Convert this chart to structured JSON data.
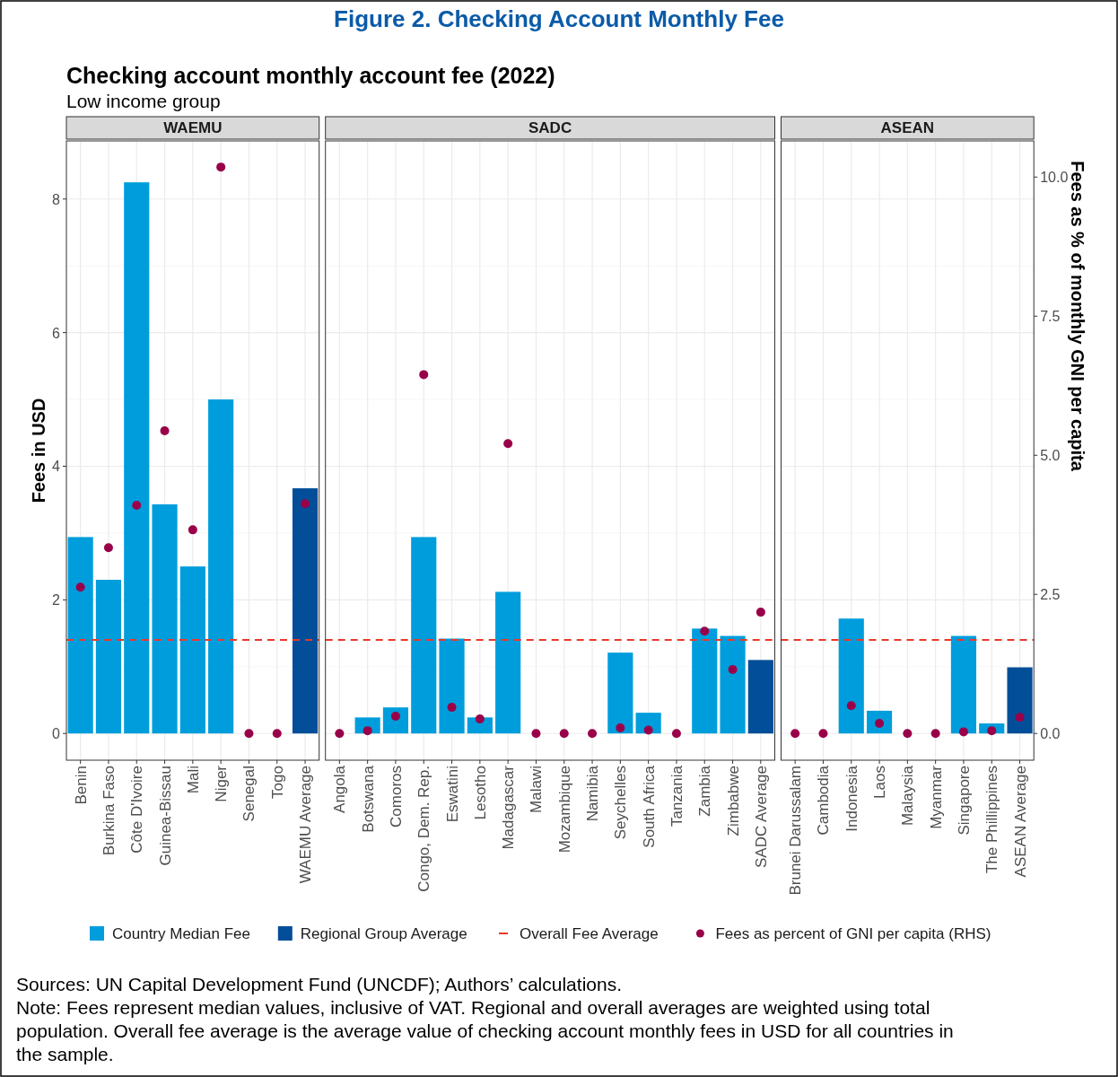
{
  "chart_data": [
    {
      "type": "bar",
      "title": "WAEMU",
      "ylabel": "Fees in USD",
      "categories": [
        "Benin",
        "Burkina Faso",
        "Côte D'Ivoire",
        "Guinea-Bissau",
        "Mali",
        "Niger",
        "Senegal",
        "Togo",
        "WAEMU Average"
      ],
      "stacked": true,
      "legend": "bottom",
      "grid": true,
      "marker": "circle",
      "annotations": [
        "Figure 2. Checking Account Monthly Fee",
        "Checking account monthly account fee (2022)",
        "Low income group",
        "Sources: UN Capital Development Fund (UNCDF); Authors’ calculations.",
        "Note: Fees represent median values, inclusive of VAT. Regional and overall averages are weighted using total population. Overall fee average is the average value of checking account monthly fees in USD for all countries in the sample."
      ],
      "series": [
        {
          "name": "Country Median Fee",
          "color": "#009ddc",
          "values": [
            2.94,
            2.3,
            8.25,
            3.43,
            2.5,
            5.0,
            0,
            0,
            null
          ]
        },
        {
          "name": "Regional Group Average",
          "color": "#024e99",
          "values": [
            null,
            null,
            null,
            null,
            null,
            null,
            null,
            null,
            3.67
          ]
        },
        {
          "name": "Fees as percent of GNI per capita (RHS)",
          "type": "scatter",
          "axis": "y2",
          "color": "#990049",
          "values": [
            2.63,
            3.34,
            4.1,
            5.44,
            3.66,
            10.18,
            0,
            0,
            4.13
          ]
        }
      ],
      "ylim": [
        -0.4,
        8.87
      ],
      "yticks": [
        0,
        2,
        4,
        6,
        8
      ],
      "y2lim": [
        -0.48,
        10.65
      ],
      "ref_lines": [
        {
          "axis": "y",
          "value": 1.4,
          "label": "Overall Fee Average",
          "color": "#e8392b",
          "line_style": "dashed"
        }
      ]
    },
    {
      "type": "bar",
      "title": "SADC",
      "categories": [
        "Angola",
        "Botswana",
        "Comoros",
        "Congo, Dem. Rep.",
        "Eswatini",
        "Lesotho",
        "Madagascar",
        "Malawi",
        "Mozambique",
        "Namibia",
        "Seychelles",
        "South Africa",
        "Tanzania",
        "Zambia",
        "Zimbabwe",
        "SADC Average"
      ],
      "stacked": true,
      "grid": true,
      "tick_labels": "x",
      "marker": "circle",
      "series": [
        {
          "color": "#009ddc",
          "values": [
            0,
            0.24,
            0.39,
            2.94,
            1.42,
            0.24,
            2.12,
            0,
            0,
            0,
            1.21,
            0.31,
            0,
            1.57,
            1.46,
            null
          ]
        },
        {
          "color": "#024e99",
          "values": [
            null,
            null,
            null,
            null,
            null,
            null,
            null,
            null,
            null,
            null,
            null,
            null,
            null,
            null,
            null,
            1.1
          ]
        },
        {
          "type": "scatter",
          "axis": "y2",
          "color": "#990049",
          "values": [
            0,
            0.05,
            0.31,
            6.45,
            0.47,
            0.26,
            5.21,
            0,
            0,
            0,
            0.1,
            0.06,
            0,
            1.84,
            1.15,
            2.18
          ]
        }
      ],
      "ylim": [
        -0.4,
        8.87
      ],
      "yticks": [
        0,
        2,
        4,
        6,
        8
      ],
      "y2lim": [
        -0.48,
        10.65
      ],
      "ref_lines": [
        {
          "axis": "y",
          "value": 1.4,
          "color": "#e8392b",
          "line_style": "dashed"
        }
      ]
    },
    {
      "type": "bar",
      "title": "ASEAN",
      "y2label": "Fees as % of monthly GNI per capita",
      "categories": [
        "Brunei Darussalam",
        "Cambodia",
        "Indonesia",
        "Laos",
        "Malaysia",
        "Myanmar",
        "Singapore",
        "The Phillippines",
        "ASEAN Average"
      ],
      "stacked": true,
      "grid": true,
      "marker": "circle",
      "series": [
        {
          "color": "#009ddc",
          "values": [
            0,
            0,
            1.72,
            0.34,
            0,
            0,
            1.46,
            0.15,
            null
          ]
        },
        {
          "color": "#024e99",
          "values": [
            null,
            null,
            null,
            null,
            null,
            null,
            null,
            null,
            0.99
          ]
        },
        {
          "type": "scatter",
          "axis": "y2",
          "color": "#990049",
          "values": [
            0,
            0,
            0.5,
            0.18,
            0,
            0,
            0.03,
            0.05,
            0.29
          ]
        }
      ],
      "ylim": [
        -0.4,
        8.87
      ],
      "y2lim": [
        -0.48,
        10.65
      ],
      "y2ticks": [
        {
          "value": 0,
          "label": "0.0"
        },
        {
          "value": 2.5,
          "label": "2.5"
        },
        {
          "value": 5,
          "label": "5.0"
        },
        {
          "value": 7.5,
          "label": "7.5"
        },
        {
          "value": 10,
          "label": "10.0"
        }
      ],
      "ref_lines": [
        {
          "axis": "y",
          "value": 1.4,
          "color": "#e8392b",
          "line_style": "dashed"
        }
      ]
    }
  ]
}
